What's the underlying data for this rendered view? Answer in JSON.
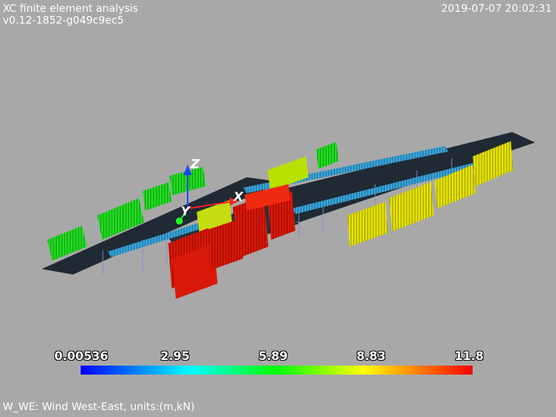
{
  "header": {
    "title": "XC finite element analysis",
    "version": "v0.12-1852-g049c9ec5",
    "timestamp": "2019-07-07 20:02:31"
  },
  "axes": {
    "x": "X",
    "y": "Y",
    "z": "Z"
  },
  "colorbar": {
    "ticks": [
      "0.00536",
      "2.95",
      "5.89",
      "8.83",
      "11.8"
    ],
    "colors": [
      "#0000ff",
      "#00ffff",
      "#00ff00",
      "#ffff00",
      "#ff0000"
    ]
  },
  "caption": "W_WE: Wind West-East, units:(m,kN)"
}
